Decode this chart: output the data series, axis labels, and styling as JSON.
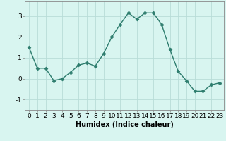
{
  "x": [
    0,
    1,
    2,
    3,
    4,
    5,
    6,
    7,
    8,
    9,
    10,
    11,
    12,
    13,
    14,
    15,
    16,
    17,
    18,
    19,
    20,
    21,
    22,
    23
  ],
  "y": [
    1.5,
    0.5,
    0.5,
    -0.1,
    0.0,
    0.3,
    0.65,
    0.75,
    0.6,
    1.2,
    2.0,
    2.6,
    3.15,
    2.85,
    3.15,
    3.15,
    2.6,
    1.4,
    0.35,
    -0.1,
    -0.6,
    -0.6,
    -0.3,
    -0.2
  ],
  "line_color": "#2e7d6e",
  "marker": "D",
  "markersize": 2.5,
  "linewidth": 1.0,
  "bg_color": "#d8f5f0",
  "grid_color": "#b8ddd8",
  "xlabel": "Humidex (Indice chaleur)",
  "xlabel_fontsize": 7,
  "tick_fontsize": 6.5,
  "ylim": [
    -1.5,
    3.7
  ],
  "yticks": [
    -1,
    0,
    1,
    2,
    3
  ],
  "xticks": [
    0,
    1,
    2,
    3,
    4,
    5,
    6,
    7,
    8,
    9,
    10,
    11,
    12,
    13,
    14,
    15,
    16,
    17,
    18,
    19,
    20,
    21,
    22,
    23
  ],
  "xlim": [
    -0.5,
    23.5
  ]
}
